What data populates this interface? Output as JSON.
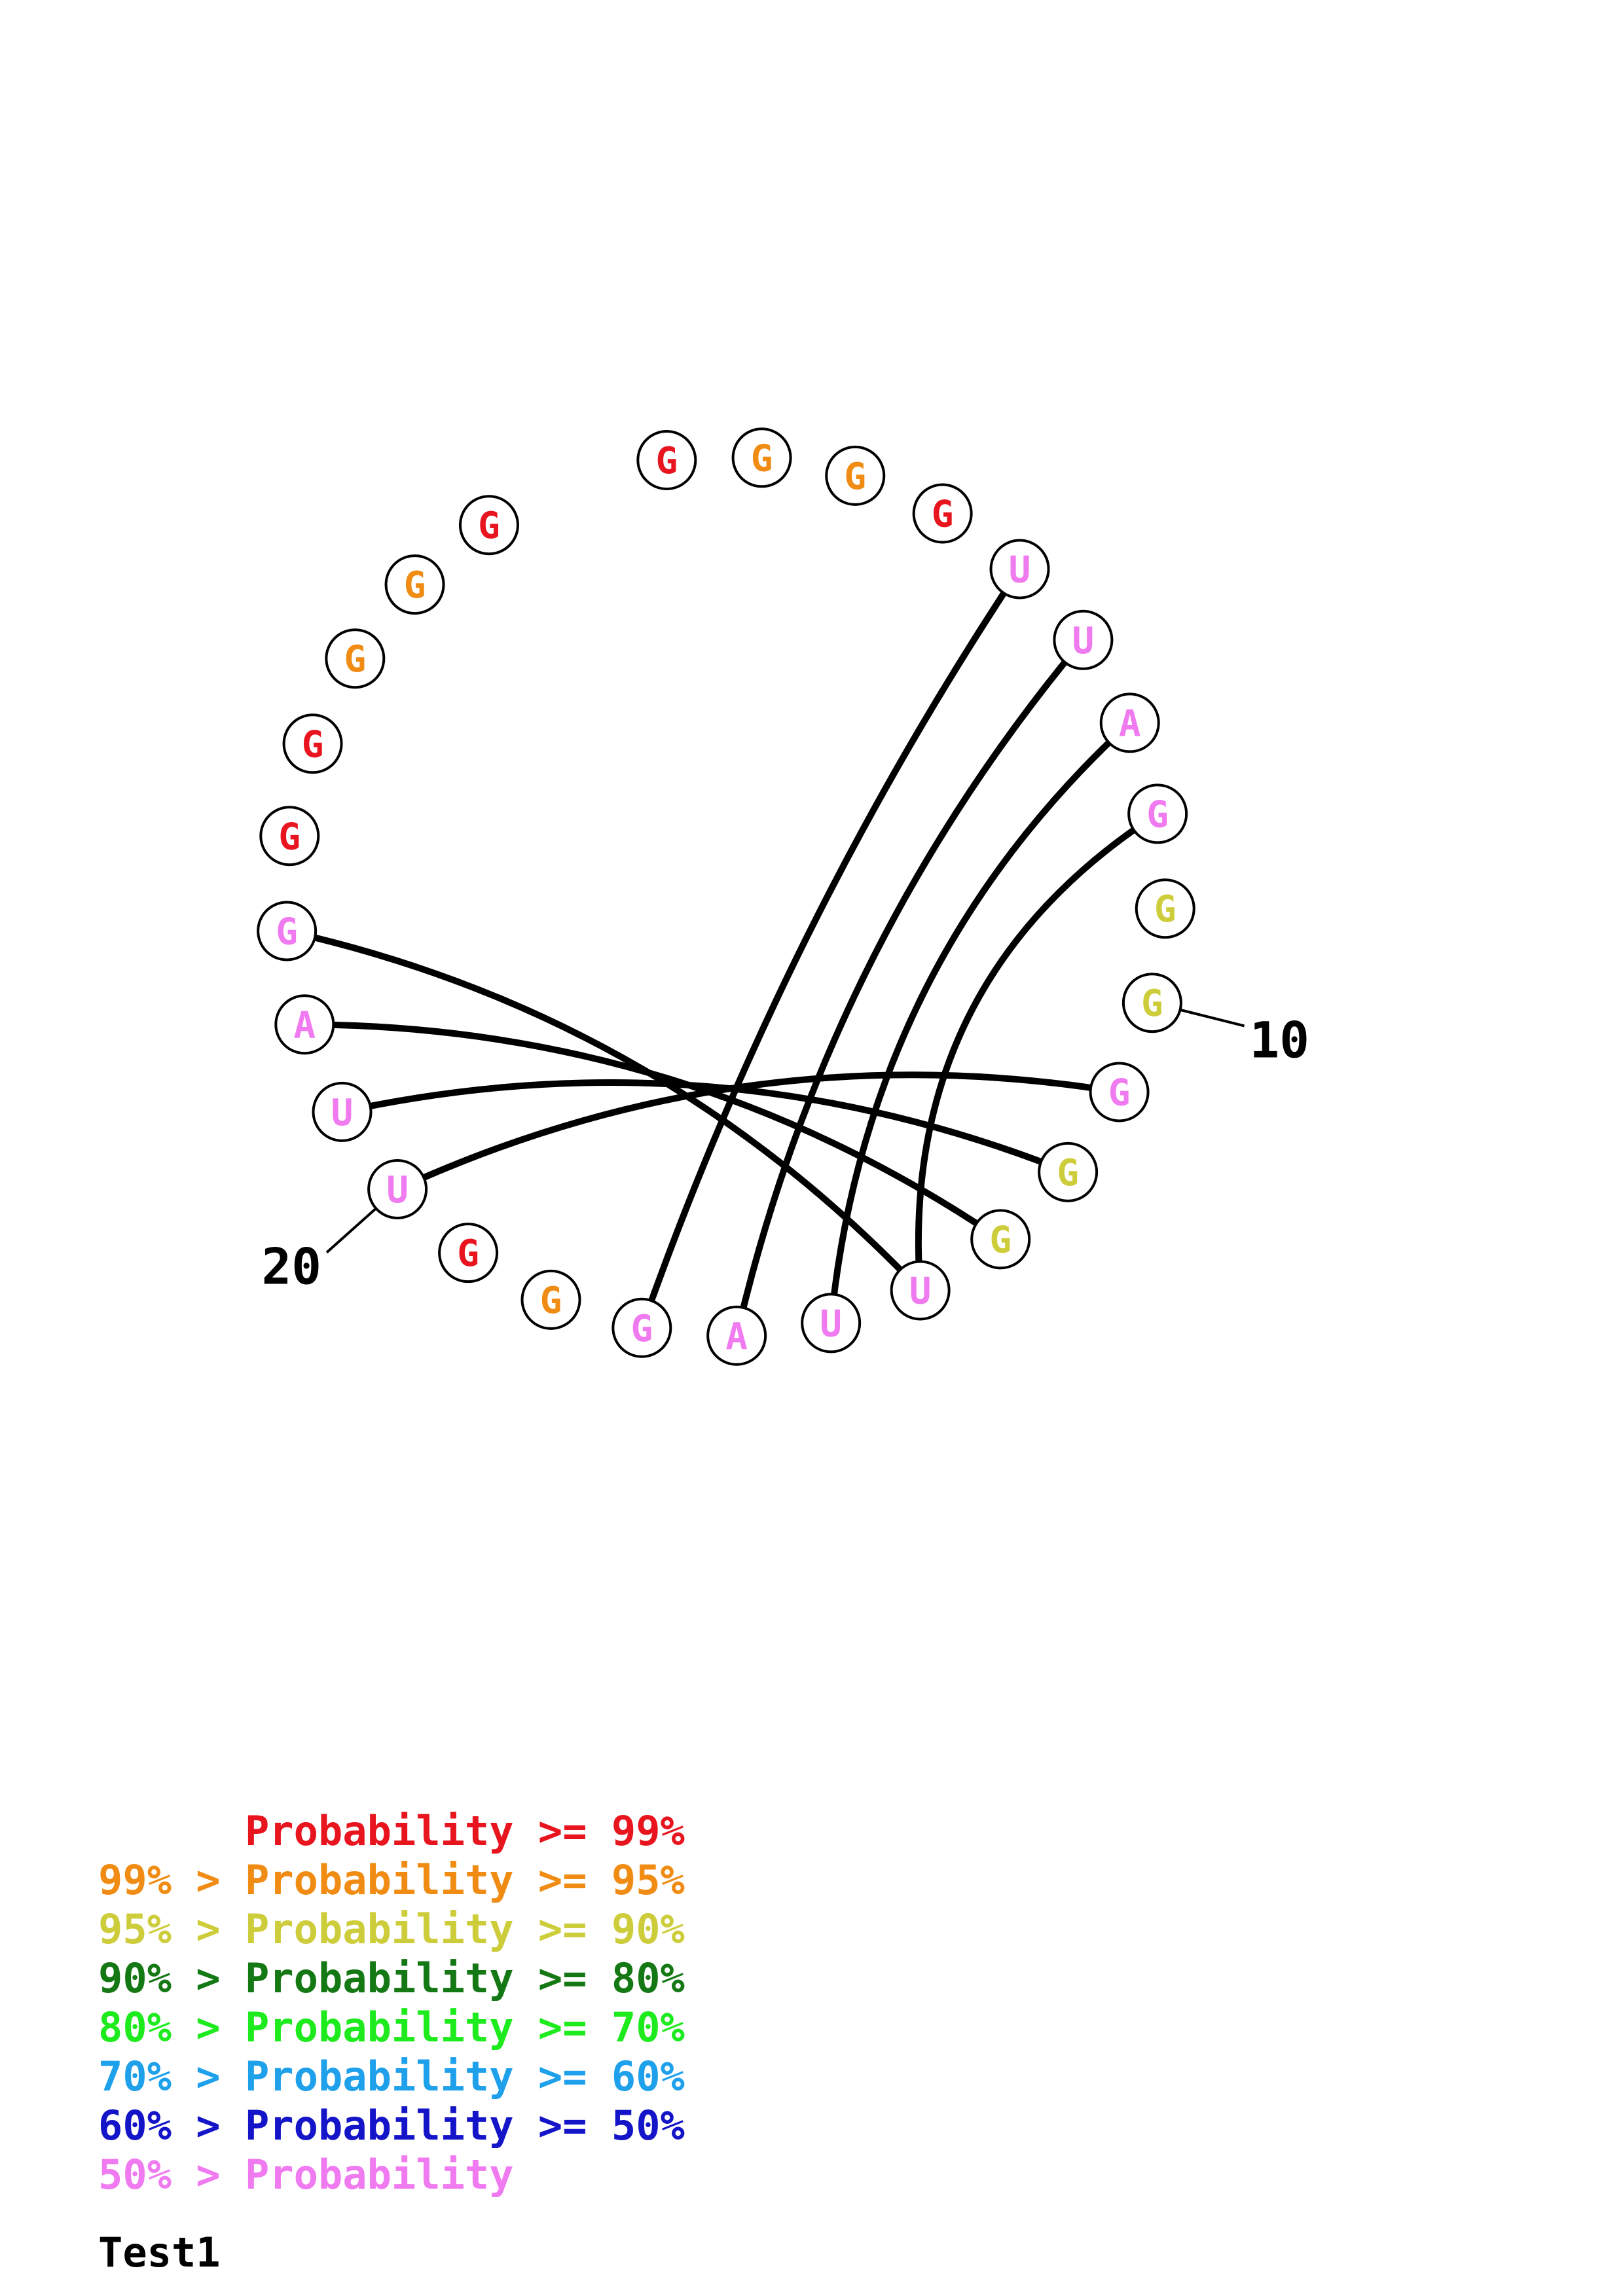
{
  "colors": {
    "p99": "#e8141e",
    "p95": "#f08c14",
    "p90": "#cdcd3c",
    "p80": "#147814",
    "p70": "#1eeb1e",
    "p60": "#1ea0eb",
    "p50": "#1414c8",
    "p0": "#f07af0"
  },
  "nucleotides": [
    {
      "n": 1,
      "base": "G",
      "color": "p99"
    },
    {
      "n": 2,
      "base": "G",
      "color": "p95"
    },
    {
      "n": 3,
      "base": "G",
      "color": "p95"
    },
    {
      "n": 4,
      "base": "G",
      "color": "p99"
    },
    {
      "n": 5,
      "base": "U",
      "color": "p0"
    },
    {
      "n": 6,
      "base": "U",
      "color": "p0"
    },
    {
      "n": 7,
      "base": "A",
      "color": "p0"
    },
    {
      "n": 8,
      "base": "G",
      "color": "p0"
    },
    {
      "n": 9,
      "base": "G",
      "color": "p90"
    },
    {
      "n": 10,
      "base": "G",
      "color": "p90"
    },
    {
      "n": 11,
      "base": "G",
      "color": "p0"
    },
    {
      "n": 12,
      "base": "G",
      "color": "p90"
    },
    {
      "n": 13,
      "base": "G",
      "color": "p90"
    },
    {
      "n": 14,
      "base": "U",
      "color": "p0"
    },
    {
      "n": 15,
      "base": "U",
      "color": "p0"
    },
    {
      "n": 16,
      "base": "A",
      "color": "p0"
    },
    {
      "n": 17,
      "base": "G",
      "color": "p0"
    },
    {
      "n": 18,
      "base": "G",
      "color": "p95"
    },
    {
      "n": 19,
      "base": "G",
      "color": "p99"
    },
    {
      "n": 20,
      "base": "U",
      "color": "p0"
    },
    {
      "n": 21,
      "base": "U",
      "color": "p0"
    },
    {
      "n": 22,
      "base": "A",
      "color": "p0"
    },
    {
      "n": 23,
      "base": "G",
      "color": "p0"
    },
    {
      "n": 24,
      "base": "G",
      "color": "p99"
    },
    {
      "n": 25,
      "base": "G",
      "color": "p99"
    },
    {
      "n": 26,
      "base": "G",
      "color": "p95"
    },
    {
      "n": 27,
      "base": "G",
      "color": "p95"
    },
    {
      "n": 28,
      "base": "G",
      "color": "p99"
    }
  ],
  "pairs": [
    [
      5,
      17
    ],
    [
      6,
      16
    ],
    [
      7,
      15
    ],
    [
      8,
      14
    ],
    [
      11,
      20
    ],
    [
      12,
      21
    ],
    [
      13,
      22
    ],
    [
      14,
      23
    ]
  ],
  "index_labels": [
    {
      "n": 10,
      "text": "10"
    },
    {
      "n": 20,
      "text": "20"
    }
  ],
  "legend": [
    {
      "text": "      Probability >= 99%",
      "color": "p99"
    },
    {
      "text": "99% > Probability >= 95%",
      "color": "p95"
    },
    {
      "text": "95% > Probability >= 90%",
      "color": "p90"
    },
    {
      "text": "90% > Probability >= 80%",
      "color": "p80"
    },
    {
      "text": "80% > Probability >= 70%",
      "color": "p70"
    },
    {
      "text": "70% > Probability >= 60%",
      "color": "p60"
    },
    {
      "text": "60% > Probability >= 50%",
      "color": "p50"
    },
    {
      "text": "50% > Probability",
      "color": "p0"
    }
  ],
  "title": "Test1"
}
